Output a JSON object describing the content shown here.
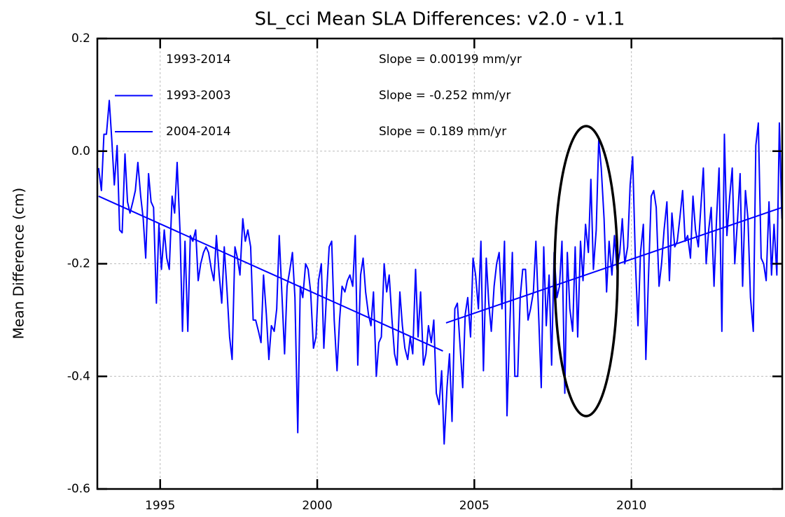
{
  "chart_data": {
    "type": "line",
    "title": "SL_cci Mean SLA Differences: v2.0 - v1.1",
    "ylabel": "Mean Difference (cm)",
    "color": "#0000ff",
    "grid": true,
    "xlim": [
      1993,
      2014.8
    ],
    "ylim": [
      -0.6,
      0.2
    ],
    "xticks": [
      1995,
      2000,
      2005,
      2010
    ],
    "yticks": [
      -0.6,
      -0.4,
      -0.2,
      {
        "value": 0,
        "label": "0.0"
      },
      0.2
    ],
    "x": [
      1993.04,
      1993.13,
      1993.21,
      1993.29,
      1993.38,
      1993.46,
      1993.54,
      1993.63,
      1993.71,
      1993.79,
      1993.88,
      1993.96,
      1994.04,
      1994.13,
      1994.21,
      1994.29,
      1994.38,
      1994.46,
      1994.54,
      1994.63,
      1994.71,
      1994.79,
      1994.88,
      1994.96,
      1995.04,
      1995.13,
      1995.21,
      1995.29,
      1995.38,
      1995.46,
      1995.54,
      1995.63,
      1995.71,
      1995.79,
      1995.88,
      1995.96,
      1996.04,
      1996.13,
      1996.21,
      1996.29,
      1996.38,
      1996.46,
      1996.54,
      1996.63,
      1996.71,
      1996.79,
      1996.88,
      1996.96,
      1997.04,
      1997.13,
      1997.21,
      1997.29,
      1997.38,
      1997.46,
      1997.54,
      1997.63,
      1997.71,
      1997.79,
      1997.88,
      1997.96,
      1998.04,
      1998.13,
      1998.21,
      1998.29,
      1998.38,
      1998.46,
      1998.54,
      1998.63,
      1998.71,
      1998.79,
      1998.88,
      1998.96,
      1999.04,
      1999.13,
      1999.21,
      1999.29,
      1999.38,
      1999.46,
      1999.54,
      1999.63,
      1999.71,
      1999.79,
      1999.88,
      1999.96,
      2000.04,
      2000.13,
      2000.21,
      2000.29,
      2000.38,
      2000.46,
      2000.54,
      2000.63,
      2000.71,
      2000.79,
      2000.88,
      2000.96,
      2001.04,
      2001.13,
      2001.21,
      2001.29,
      2001.38,
      2001.46,
      2001.54,
      2001.63,
      2001.71,
      2001.79,
      2001.88,
      2001.96,
      2002.04,
      2002.13,
      2002.21,
      2002.29,
      2002.38,
      2002.46,
      2002.54,
      2002.63,
      2002.71,
      2002.79,
      2002.88,
      2002.96,
      2003.04,
      2003.13,
      2003.21,
      2003.29,
      2003.38,
      2003.46,
      2003.54,
      2003.63,
      2003.71,
      2003.79,
      2003.88,
      2003.96,
      2004.04,
      2004.13,
      2004.21,
      2004.29,
      2004.38,
      2004.46,
      2004.54,
      2004.63,
      2004.71,
      2004.79,
      2004.88,
      2004.96,
      2005.04,
      2005.13,
      2005.21,
      2005.29,
      2005.38,
      2005.46,
      2005.54,
      2005.63,
      2005.71,
      2005.79,
      2005.88,
      2005.96,
      2006.04,
      2006.13,
      2006.21,
      2006.29,
      2006.38,
      2006.46,
      2006.54,
      2006.63,
      2006.71,
      2006.79,
      2006.88,
      2006.96,
      2007.04,
      2007.13,
      2007.21,
      2007.29,
      2007.38,
      2007.46,
      2007.54,
      2007.63,
      2007.71,
      2007.79,
      2007.88,
      2007.96,
      2008.04,
      2008.13,
      2008.21,
      2008.29,
      2008.38,
      2008.46,
      2008.54,
      2008.63,
      2008.71,
      2008.79,
      2008.88,
      2008.96,
      2009.04,
      2009.13,
      2009.21,
      2009.29,
      2009.38,
      2009.46,
      2009.54,
      2009.63,
      2009.71,
      2009.79,
      2009.88,
      2009.96,
      2010.04,
      2010.13,
      2010.21,
      2010.29,
      2010.38,
      2010.46,
      2010.54,
      2010.63,
      2010.71,
      2010.79,
      2010.88,
      2010.96,
      2011.04,
      2011.13,
      2011.21,
      2011.29,
      2011.38,
      2011.46,
      2011.54,
      2011.63,
      2011.71,
      2011.79,
      2011.88,
      2011.96,
      2012.04,
      2012.13,
      2012.21,
      2012.29,
      2012.38,
      2012.46,
      2012.54,
      2012.63,
      2012.71,
      2012.79,
      2012.88,
      2012.96,
      2013.04,
      2013.13,
      2013.21,
      2013.29,
      2013.38,
      2013.46,
      2013.54,
      2013.63,
      2013.71,
      2013.79,
      2013.88,
      2013.96,
      2014.04,
      2014.13,
      2014.21,
      2014.29,
      2014.38,
      2014.46,
      2014.54,
      2014.63,
      2014.71,
      2014.79
    ],
    "values": [
      -0.03,
      -0.07,
      0.03,
      0.03,
      0.09,
      0.02,
      -0.06,
      0.01,
      -0.14,
      -0.145,
      -0.005,
      -0.09,
      -0.11,
      -0.09,
      -0.07,
      -0.02,
      -0.08,
      -0.12,
      -0.19,
      -0.04,
      -0.09,
      -0.1,
      -0.27,
      -0.13,
      -0.21,
      -0.14,
      -0.19,
      -0.21,
      -0.08,
      -0.11,
      -0.02,
      -0.14,
      -0.32,
      -0.16,
      -0.32,
      -0.15,
      -0.16,
      -0.14,
      -0.23,
      -0.2,
      -0.18,
      -0.17,
      -0.18,
      -0.21,
      -0.23,
      -0.15,
      -0.22,
      -0.27,
      -0.17,
      -0.25,
      -0.33,
      -0.37,
      -0.17,
      -0.19,
      -0.22,
      -0.12,
      -0.16,
      -0.14,
      -0.17,
      -0.3,
      -0.3,
      -0.32,
      -0.34,
      -0.22,
      -0.29,
      -0.37,
      -0.31,
      -0.32,
      -0.28,
      -0.15,
      -0.26,
      -0.36,
      -0.24,
      -0.21,
      -0.18,
      -0.26,
      -0.5,
      -0.24,
      -0.26,
      -0.2,
      -0.21,
      -0.25,
      -0.35,
      -0.33,
      -0.23,
      -0.2,
      -0.35,
      -0.26,
      -0.17,
      -0.16,
      -0.3,
      -0.39,
      -0.3,
      -0.24,
      -0.25,
      -0.23,
      -0.22,
      -0.24,
      -0.15,
      -0.38,
      -0.22,
      -0.19,
      -0.25,
      -0.29,
      -0.31,
      -0.25,
      -0.4,
      -0.34,
      -0.33,
      -0.2,
      -0.25,
      -0.22,
      -0.3,
      -0.36,
      -0.38,
      -0.25,
      -0.31,
      -0.35,
      -0.37,
      -0.33,
      -0.36,
      -0.21,
      -0.33,
      -0.25,
      -0.38,
      -0.36,
      -0.31,
      -0.34,
      -0.3,
      -0.43,
      -0.45,
      -0.39,
      -0.52,
      -0.42,
      -0.36,
      -0.48,
      -0.28,
      -0.27,
      -0.34,
      -0.42,
      -0.29,
      -0.26,
      -0.33,
      -0.19,
      -0.22,
      -0.28,
      -0.16,
      -0.39,
      -0.19,
      -0.27,
      -0.32,
      -0.24,
      -0.2,
      -0.18,
      -0.28,
      -0.16,
      -0.47,
      -0.31,
      -0.18,
      -0.4,
      -0.4,
      -0.26,
      -0.21,
      -0.21,
      -0.3,
      -0.28,
      -0.25,
      -0.16,
      -0.28,
      -0.42,
      -0.17,
      -0.31,
      -0.22,
      -0.38,
      -0.18,
      -0.26,
      -0.24,
      -0.16,
      -0.43,
      -0.18,
      -0.28,
      -0.32,
      -0.17,
      -0.33,
      -0.16,
      -0.23,
      -0.13,
      -0.18,
      -0.05,
      -0.21,
      -0.14,
      0.02,
      -0.03,
      -0.12,
      -0.25,
      -0.16,
      -0.22,
      -0.15,
      -0.21,
      -0.18,
      -0.12,
      -0.2,
      -0.17,
      -0.06,
      -0.01,
      -0.2,
      -0.31,
      -0.18,
      -0.13,
      -0.37,
      -0.23,
      -0.08,
      -0.07,
      -0.1,
      -0.24,
      -0.2,
      -0.14,
      -0.09,
      -0.23,
      -0.11,
      -0.17,
      -0.16,
      -0.12,
      -0.07,
      -0.16,
      -0.15,
      -0.19,
      -0.08,
      -0.14,
      -0.17,
      -0.1,
      -0.03,
      -0.2,
      -0.14,
      -0.1,
      -0.24,
      -0.12,
      -0.03,
      -0.32,
      0.03,
      -0.15,
      -0.08,
      -0.03,
      -0.2,
      -0.12,
      -0.04,
      -0.24,
      -0.07,
      -0.12,
      -0.26,
      -0.32,
      0.01,
      0.05,
      -0.19,
      -0.2,
      -0.23,
      -0.09,
      -0.22,
      -0.13,
      -0.22,
      0.05,
      -0.12
    ],
    "trends": [
      {
        "name": "1993-2014",
        "slope": "Slope = 0.00199 mm/yr"
      },
      {
        "name": "1993-2003",
        "slope": "Slope = -0.252 mm/yr",
        "x": [
          1993.04,
          2004.0
        ],
        "values": [
          -0.08,
          -0.355
        ]
      },
      {
        "name": "2004-2014",
        "slope": "Slope = 0.189 mm/yr",
        "x": [
          2004.1,
          2014.8
        ],
        "values": [
          -0.305,
          -0.1
        ]
      }
    ]
  }
}
